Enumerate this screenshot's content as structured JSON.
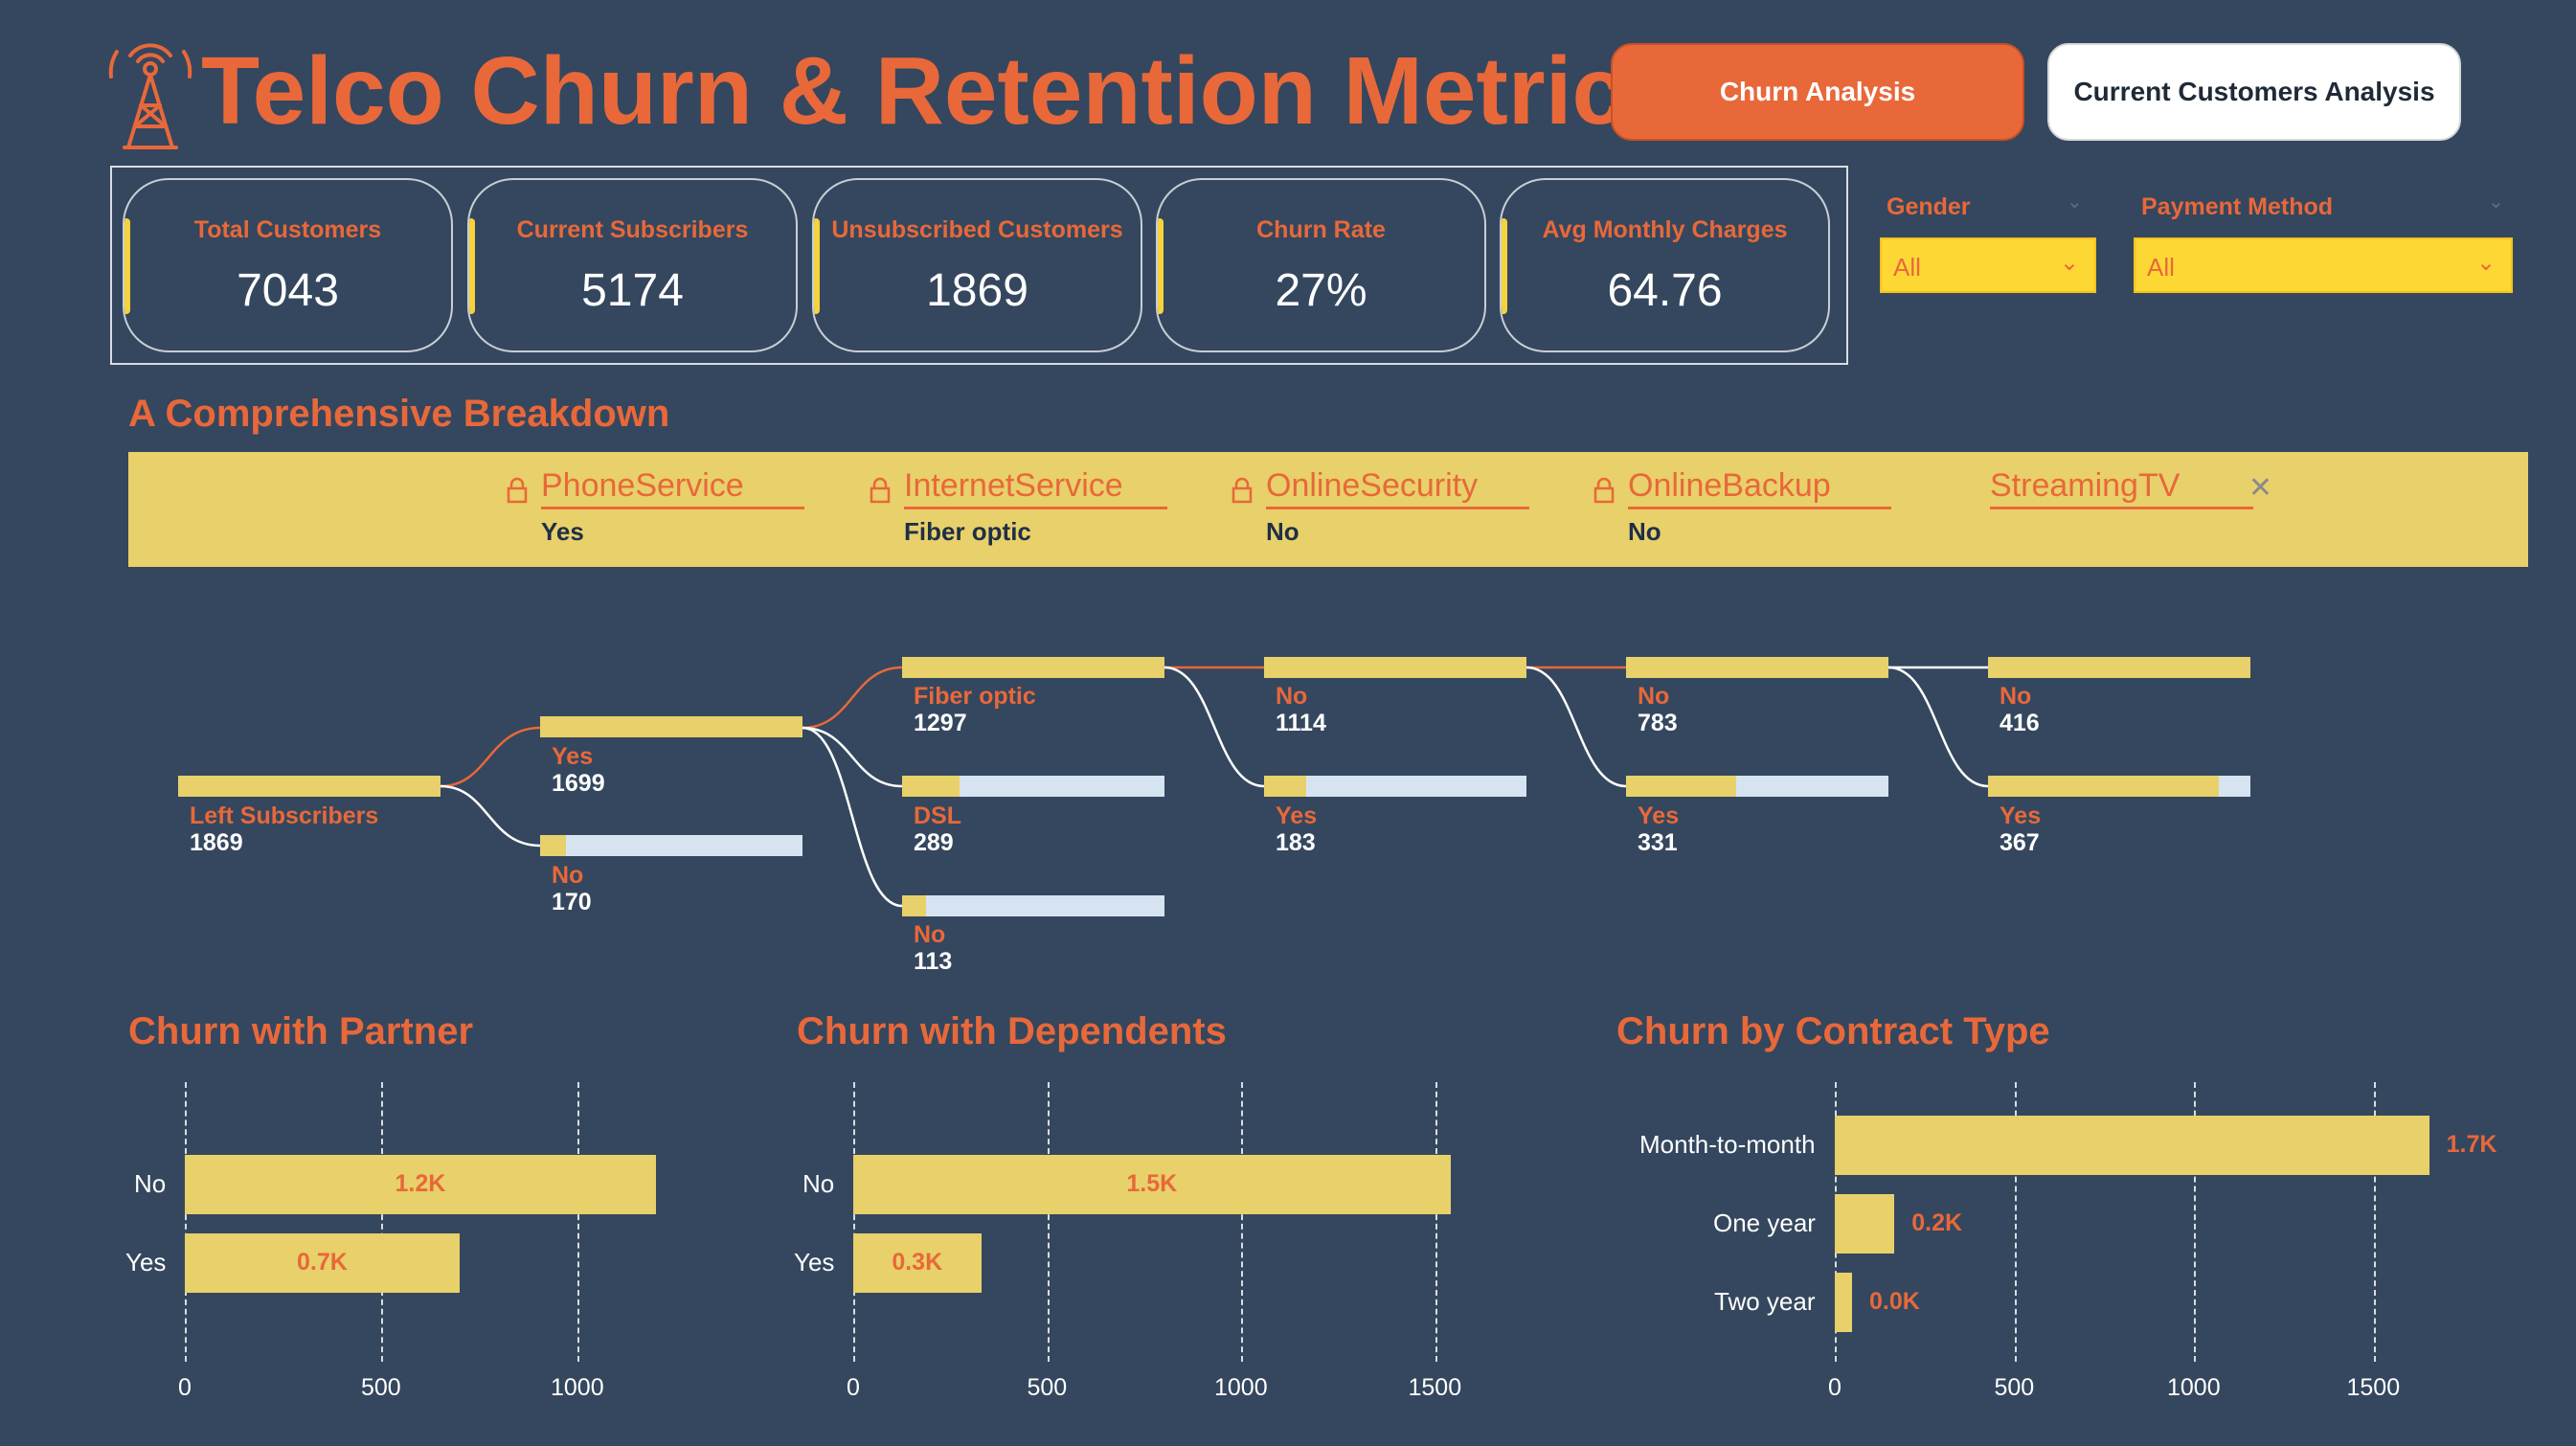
{
  "header": {
    "title": "Telco Churn & Retention Metrics",
    "logo_icon": "radio-tower-icon",
    "buttons": {
      "churn_analysis": "Churn Analysis",
      "current_customers": "Current Customers Analysis"
    }
  },
  "kpis": [
    {
      "label": "Total Customers",
      "value": "7043"
    },
    {
      "label": "Current Subscribers",
      "value": "5174"
    },
    {
      "label": "Unsubscribed Customers",
      "value": "1869"
    },
    {
      "label": "Churn Rate",
      "value": "27%"
    },
    {
      "label": "Avg Monthly Charges",
      "value": "64.76"
    }
  ],
  "slicers": {
    "gender": {
      "label": "Gender",
      "value": "All"
    },
    "payment_method": {
      "label": "Payment Method",
      "value": "All"
    }
  },
  "breakdown": {
    "title": "A Comprehensive Breakdown",
    "levels": [
      {
        "name": "PhoneService",
        "selected": "Yes",
        "locked": true
      },
      {
        "name": "InternetService",
        "selected": "Fiber optic",
        "locked": true
      },
      {
        "name": "OnlineSecurity",
        "selected": "No",
        "locked": true
      },
      {
        "name": "OnlineBackup",
        "selected": "No",
        "locked": true
      },
      {
        "name": "StreamingTV",
        "selected": "",
        "locked": false
      }
    ],
    "root": {
      "label": "Left Subscribers",
      "value": "1869"
    },
    "nodes": {
      "phone_yes": {
        "label": "Yes",
        "value": "1699"
      },
      "phone_no": {
        "label": "No",
        "value": "170"
      },
      "internet_fiber": {
        "label": "Fiber optic",
        "value": "1297"
      },
      "internet_dsl": {
        "label": "DSL",
        "value": "289"
      },
      "internet_no": {
        "label": "No",
        "value": "113"
      },
      "security_no": {
        "label": "No",
        "value": "1114"
      },
      "security_yes": {
        "label": "Yes",
        "value": "183"
      },
      "backup_no": {
        "label": "No",
        "value": "783"
      },
      "backup_yes": {
        "label": "Yes",
        "value": "331"
      },
      "tv_no": {
        "label": "No",
        "value": "416"
      },
      "tv_yes": {
        "label": "Yes",
        "value": "367"
      }
    }
  },
  "chart_data": [
    {
      "type": "bar",
      "title": "Churn with Partner",
      "categories": [
        "No",
        "Yes"
      ],
      "values": [
        1200,
        700
      ],
      "data_labels": [
        "1.2K",
        "0.7K"
      ],
      "ticks": [
        0,
        500,
        1000
      ],
      "xlim": [
        0,
        1500
      ]
    },
    {
      "type": "bar",
      "title": "Churn with Dependents",
      "categories": [
        "No",
        "Yes"
      ],
      "values": [
        1540,
        330
      ],
      "data_labels": [
        "1.5K",
        "0.3K"
      ],
      "ticks": [
        0,
        500,
        1000,
        1500
      ],
      "xlim": [
        0,
        1600
      ]
    },
    {
      "type": "bar",
      "title": "Churn by Contract Type",
      "categories": [
        "Month-to-month",
        "One year",
        "Two year"
      ],
      "values": [
        1655,
        166,
        48
      ],
      "data_labels": [
        "1.7K",
        "0.2K",
        "0.0K"
      ],
      "ticks": [
        0,
        500,
        1000,
        1500
      ],
      "xlim": [
        0,
        1700
      ]
    }
  ]
}
